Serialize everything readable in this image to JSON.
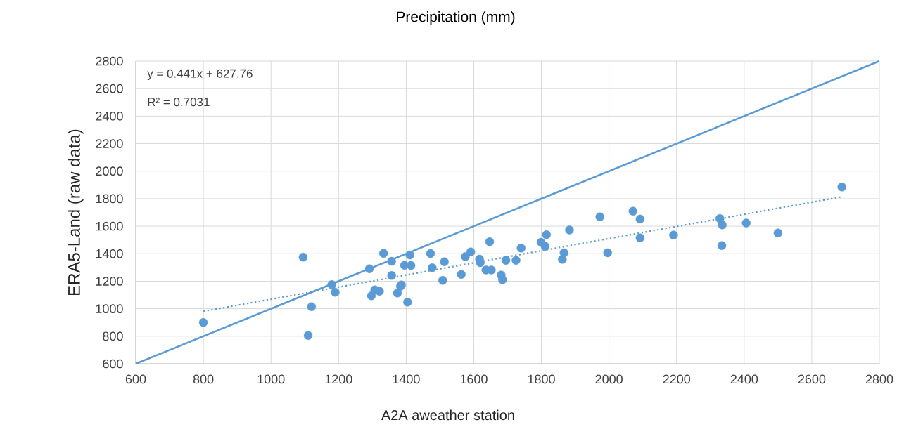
{
  "chart_data": {
    "type": "scatter",
    "title": "Precipitation (mm)",
    "xlabel": "A2A aweather station",
    "ylabel": "ERA5-Land (raw data)",
    "annotations": [
      "y = 0.441x + 627.76",
      "R² = 0.7031"
    ],
    "xlim": [
      600,
      2800
    ],
    "xticks": [
      600,
      800,
      1000,
      1200,
      1400,
      1600,
      1800,
      2000,
      2200,
      2400,
      2600,
      2800
    ],
    "ylim": [
      600,
      2800
    ],
    "yticks": [
      600,
      800,
      1000,
      1200,
      1400,
      1600,
      1800,
      2000,
      2200,
      2400,
      2600,
      2800
    ],
    "grid": true,
    "series": [
      {
        "marker": "circle",
        "color": "#5b9bd5",
        "x": [
          800,
          1095,
          1110,
          1120,
          1180,
          1190,
          1291,
          1333,
          1357,
          1357,
          1307,
          1321,
          1297,
          1374,
          1386,
          1383,
          1404,
          1395,
          1414,
          1411,
          1472,
          1477,
          1513,
          1508,
          1563,
          1575,
          1591,
          1617,
          1619,
          1647,
          1636,
          1652,
          1681,
          1685,
          1695,
          1725,
          1740,
          1799,
          1811,
          1815,
          1867,
          1862,
          1883,
          1973,
          1996,
          2071,
          2092,
          2092,
          2191,
          2328,
          2335,
          2334,
          2406,
          2500,
          2689
        ],
        "values": [
          900,
          1375,
          805,
          1015,
          1175,
          1120,
          1291,
          1403,
          1345,
          1242,
          1137,
          1127,
          1094,
          1114,
          1173,
          1163,
          1048,
          1316,
          1315,
          1391,
          1401,
          1298,
          1342,
          1206,
          1250,
          1379,
          1413,
          1361,
          1335,
          1487,
          1282,
          1282,
          1245,
          1211,
          1352,
          1352,
          1441,
          1483,
          1454,
          1538,
          1407,
          1359,
          1573,
          1668,
          1407,
          1709,
          1652,
          1515,
          1536,
          1655,
          1609,
          1459,
          1623,
          1551,
          1885
        ]
      },
      {
        "type": "line",
        "marker": "none",
        "line_style": "solid",
        "color": "#5b9bd5",
        "x": [
          600,
          2800
        ],
        "values": [
          600,
          2800
        ]
      },
      {
        "type": "line",
        "marker": "none",
        "line_style": "dotted",
        "color": "#5b9bd5",
        "x": [
          800,
          2690
        ],
        "values": [
          981,
          1814
        ]
      }
    ]
  }
}
